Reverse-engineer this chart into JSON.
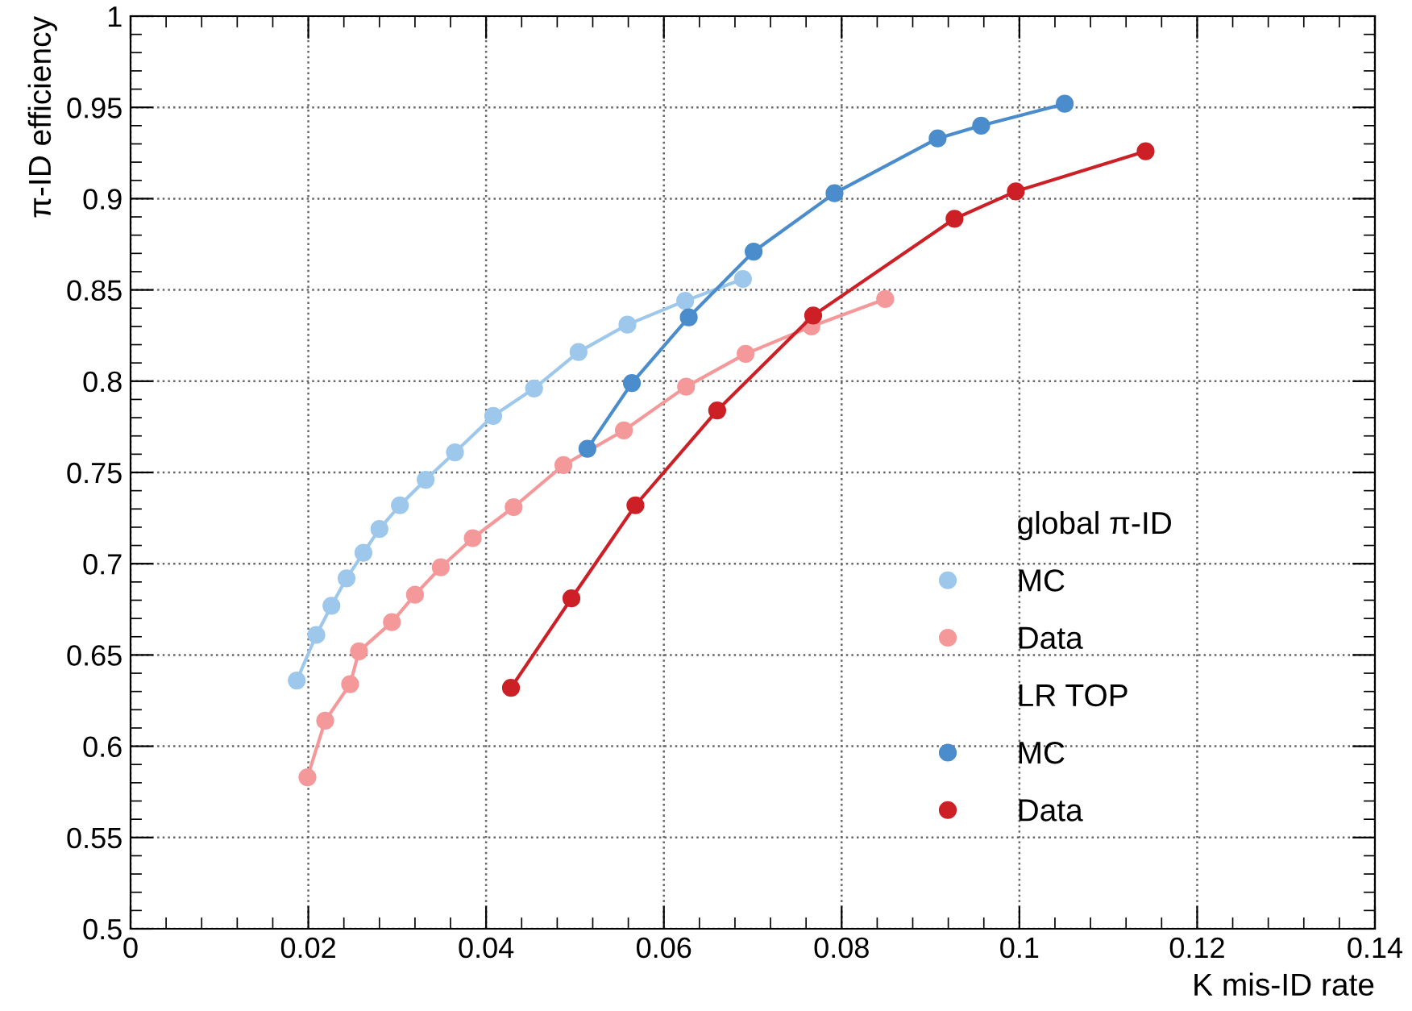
{
  "chart_data": {
    "type": "line",
    "xlabel": "K mis-ID rate",
    "ylabel": "π-ID efficiency",
    "xlim": [
      0,
      0.14
    ],
    "ylim": [
      0.5,
      1
    ],
    "xticks": [
      0,
      0.02,
      0.04,
      0.06,
      0.08,
      0.1,
      0.12,
      0.14
    ],
    "yticks": [
      0.5,
      0.55,
      0.6,
      0.65,
      0.7,
      0.75,
      0.8,
      0.85,
      0.9,
      0.95,
      1
    ],
    "annotations": [
      "global π-ID",
      "LR TOP"
    ],
    "grid": true,
    "legend": "bottom right",
    "marker": "circle",
    "line_style": "solid",
    "series": [
      {
        "name": "MC",
        "color": "#9dc8ec",
        "x": [
          0.0187,
          0.0209,
          0.0226,
          0.0243,
          0.0262,
          0.028,
          0.0303,
          0.0332,
          0.0365,
          0.0408,
          0.0454,
          0.0504,
          0.0559,
          0.0624,
          0.0689
        ],
        "values": [
          0.636,
          0.661,
          0.677,
          0.692,
          0.706,
          0.719,
          0.732,
          0.746,
          0.761,
          0.781,
          0.796,
          0.816,
          0.831,
          0.844,
          0.856
        ]
      },
      {
        "name": "Data",
        "color": "#f4989a",
        "x": [
          0.0199,
          0.0219,
          0.0247,
          0.0257,
          0.0294,
          0.032,
          0.0349,
          0.0385,
          0.0431,
          0.0487,
          0.0555,
          0.0625,
          0.0692,
          0.0766,
          0.0849
        ],
        "values": [
          0.583,
          0.614,
          0.634,
          0.652,
          0.668,
          0.683,
          0.698,
          0.714,
          0.731,
          0.754,
          0.773,
          0.797,
          0.815,
          0.83,
          0.845
        ]
      },
      {
        "name": "MC",
        "color": "#4a8ccc",
        "x": [
          0.0514,
          0.0564,
          0.0628,
          0.0701,
          0.0792,
          0.0908,
          0.0957,
          0.1051
        ],
        "values": [
          0.763,
          0.799,
          0.835,
          0.871,
          0.903,
          0.933,
          0.94,
          0.952
        ]
      },
      {
        "name": "Data",
        "color": "#cc2026",
        "x": [
          0.0428,
          0.0496,
          0.0568,
          0.066,
          0.0768,
          0.0927,
          0.0996,
          0.1142
        ],
        "values": [
          0.632,
          0.681,
          0.732,
          0.784,
          0.836,
          0.889,
          0.904,
          0.926
        ]
      }
    ]
  }
}
